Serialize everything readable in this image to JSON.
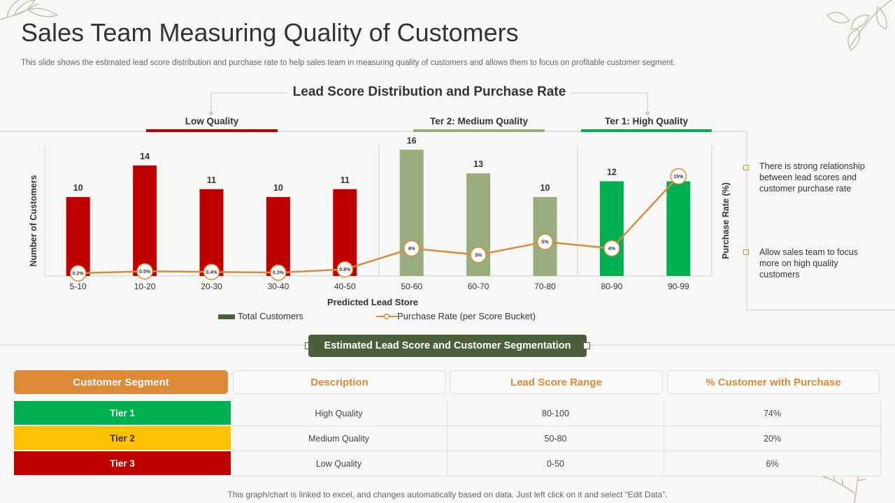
{
  "page": {
    "title": "Sales Team Measuring Quality of Customers",
    "subtitle": "This slide shows the estimated lead score distribution and purchase rate to help sales team in measuring quality of customers and allows them to focus on profitable customer segment.",
    "footer": "This graph/chart is linked to excel,  and changes automatically based on data. Just left click on it and select “Edit Data”."
  },
  "quality_labels": {
    "low": "Low Quality",
    "medium": "Ter 2:  Medium Quality",
    "high": "Ter 1:  High Quality"
  },
  "colors": {
    "low": "#c00000",
    "medium": "#9aad7e",
    "high": "#00b050",
    "line": "#d98b3a",
    "tier2": "#ffc000",
    "header_accent": "#dd8a38",
    "seg_bar": "#4b5f3a"
  },
  "chart_data": {
    "type": "bar",
    "title": "Lead Score Distribution and Purchase Rate",
    "xlabel": "Predicted Lead Store",
    "ylabel": "Number of Customers",
    "y2label": "Purchase Rate (%)",
    "categories": [
      "5-10",
      "10-20",
      "20-30",
      "30-40",
      "40-50",
      "50-60",
      "60-70",
      "70-80",
      "80-90",
      "90-99"
    ],
    "ylim": [
      0,
      17
    ],
    "y2lim": [
      0,
      17.5
    ],
    "grid": false,
    "series": [
      {
        "name": "Total Customers",
        "type": "bar",
        "values": [
          10,
          14,
          11,
          10,
          11,
          16,
          13,
          10,
          12,
          12
        ],
        "value_labels": [
          "10",
          "14",
          "11",
          "10",
          "11",
          "16",
          "13",
          "10",
          "12",
          ""
        ],
        "groups": [
          "low",
          "low",
          "low",
          "low",
          "low",
          "medium",
          "medium",
          "medium",
          "high",
          "high"
        ]
      },
      {
        "name": "Purchase Rate (per Score Bucket)",
        "type": "line",
        "axis": "right",
        "values": [
          0.2,
          0.5,
          0.4,
          0.3,
          0.8,
          4,
          3,
          5,
          4,
          15
        ],
        "value_labels": [
          "0.2%",
          "0.5%",
          "0.4%",
          "0.3%",
          "0.8%",
          "4%",
          "3%",
          "5%",
          "4%",
          "15%"
        ]
      }
    ],
    "legend": [
      "Total Customers",
      "Purchase Rate (per Score Bucket)"
    ],
    "legend_position": "bottom"
  },
  "notes": [
    "There is strong relationship between lead scores and customer purchase rate",
    "Allow sales team to focus more on high quality customers"
  ],
  "segmentation": {
    "title": "Estimated Lead Score and Customer Segmentation",
    "headers": [
      "Customer Segment",
      "Description",
      "Lead Score Range",
      "% Customer with Purchase"
    ],
    "rows": [
      {
        "tier": "Tier 1",
        "description": "High Quality",
        "range": "80-100",
        "pct": "74%"
      },
      {
        "tier": "Tier 2",
        "description": "Medium Quality",
        "range": "50-80",
        "pct": "20%"
      },
      {
        "tier": "Tier 3",
        "description": "Low Quality",
        "range": "0-50",
        "pct": "6%"
      }
    ]
  }
}
